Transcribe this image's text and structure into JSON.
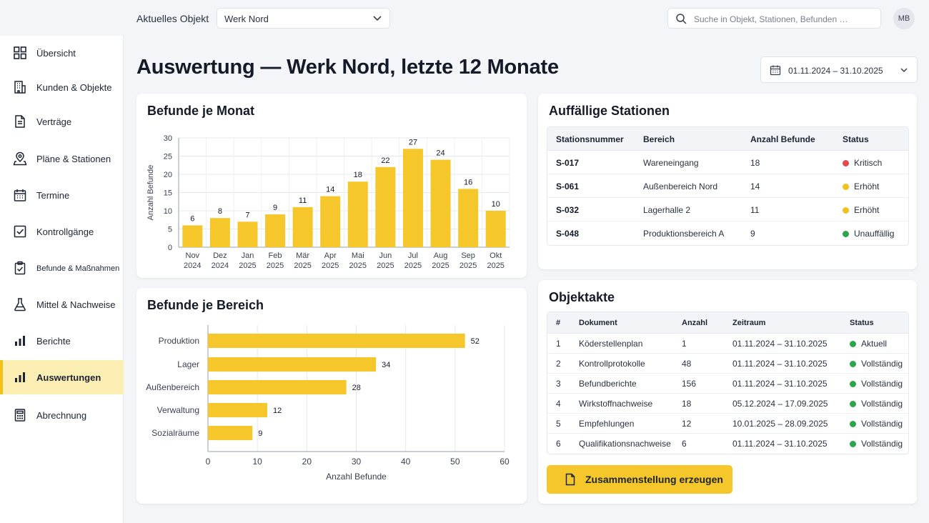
{
  "header": {
    "object_label": "Aktuelles Objekt",
    "object_value": "Werk Nord",
    "search_placeholder": "Suche in Objekt, Stationen, Befunden …",
    "avatar_initials": "MB"
  },
  "sidebar": {
    "items": [
      {
        "label": "Übersicht",
        "icon": "grid-icon"
      },
      {
        "label": "Kunden & Objekte",
        "icon": "building-icon"
      },
      {
        "label": "Verträge",
        "icon": "document-icon"
      },
      {
        "label": "Pläne & Stationen",
        "icon": "map-pin-icon"
      },
      {
        "label": "Termine",
        "icon": "calendar-icon"
      },
      {
        "label": "Kontrollgänge",
        "icon": "checkbox-icon"
      },
      {
        "label": "Befunde & Maßnahmen",
        "icon": "clipboard-icon"
      },
      {
        "label": "Mittel & Nachweise",
        "icon": "flask-icon"
      },
      {
        "label": "Berichte",
        "icon": "bar-chart-icon"
      },
      {
        "label": "Auswertungen",
        "icon": "bar-chart-icon",
        "active": true
      },
      {
        "label": "Abrechnung",
        "icon": "calculator-icon"
      }
    ]
  },
  "page": {
    "title": "Auswertung — Werk Nord, letzte 12 Monate",
    "date_range": "01.11.2024 – 31.10.2025"
  },
  "colors": {
    "accent": "#f5c72a",
    "active_nav": "#fdeeb3",
    "bar": "#f5c72a",
    "critical": "#e5484d",
    "elevated": "#f2c21c",
    "ok": "#2aa54a"
  },
  "chart_data": [
    {
      "type": "bar",
      "title": "Befunde je Monat",
      "ylabel": "Anzahl Befunde",
      "xlabel": "",
      "categories": [
        "Nov 2024",
        "Dez 2024",
        "Jan 2025",
        "Feb 2025",
        "Mär 2025",
        "Apr 2025",
        "Mai 2025",
        "Jun 2025",
        "Jul 2025",
        "Aug 2025",
        "Sep 2025",
        "Okt 2025"
      ],
      "values": [
        6,
        8,
        7,
        9,
        11,
        14,
        18,
        22,
        27,
        24,
        16,
        10
      ],
      "ylim": [
        0,
        30
      ],
      "yticks": [
        0,
        5,
        10,
        15,
        20,
        25,
        30
      ],
      "grid": true,
      "data_labels": true
    },
    {
      "type": "bar",
      "orientation": "horizontal",
      "title": "Befunde je Bereich",
      "xlabel": "Anzahl Befunde",
      "ylabel": "",
      "categories": [
        "Produktion",
        "Lager",
        "Außenbereich",
        "Verwaltung",
        "Sozialräume"
      ],
      "values": [
        52,
        34,
        28,
        12,
        9
      ],
      "xlim": [
        0,
        60
      ],
      "xticks": [
        0,
        10,
        20,
        30,
        40,
        50,
        60
      ],
      "grid": true,
      "data_labels": true
    }
  ],
  "stations": {
    "title": "Auffällige Stationen",
    "columns": [
      "Stationsnummer",
      "Bereich",
      "Anzahl Befunde",
      "Status"
    ],
    "rows": [
      {
        "id": "S-017",
        "area": "Wareneingang",
        "count": "18",
        "status": "Kritisch",
        "status_color": "#e5484d"
      },
      {
        "id": "S-061",
        "area": "Außenbereich Nord",
        "count": "14",
        "status": "Erhöht",
        "status_color": "#f2c21c"
      },
      {
        "id": "S-032",
        "area": "Lagerhalle 2",
        "count": "11",
        "status": "Erhöht",
        "status_color": "#f2c21c"
      },
      {
        "id": "S-048",
        "area": "Produktionsbereich A",
        "count": "9",
        "status": "Unauffällig",
        "status_color": "#2aa54a"
      }
    ]
  },
  "objektakte": {
    "title": "Objektakte",
    "columns": [
      "#",
      "Dokument",
      "Anzahl",
      "Zeitraum",
      "Status"
    ],
    "rows": [
      {
        "n": "1",
        "doc": "Köderstellenplan",
        "count": "1",
        "period": "01.11.2024 – 31.10.2025",
        "status": "Aktuell"
      },
      {
        "n": "2",
        "doc": "Kontrollprotokolle",
        "count": "48",
        "period": "01.11.2024 – 31.10.2025",
        "status": "Vollständig"
      },
      {
        "n": "3",
        "doc": "Befundberichte",
        "count": "156",
        "period": "01.11.2024 – 31.10.2025",
        "status": "Vollständig"
      },
      {
        "n": "4",
        "doc": "Wirkstoffnachweise",
        "count": "18",
        "period": "05.12.2024 – 17.09.2025",
        "status": "Vollständig"
      },
      {
        "n": "5",
        "doc": "Empfehlungen",
        "count": "12",
        "period": "10.01.2025 – 28.09.2025",
        "status": "Vollständig"
      },
      {
        "n": "6",
        "doc": "Qualifikationsnachweise",
        "count": "6",
        "period": "01.11.2024 – 31.10.2025",
        "status": "Vollständig"
      }
    ],
    "button_label": "Zusammenstellung erzeugen"
  }
}
